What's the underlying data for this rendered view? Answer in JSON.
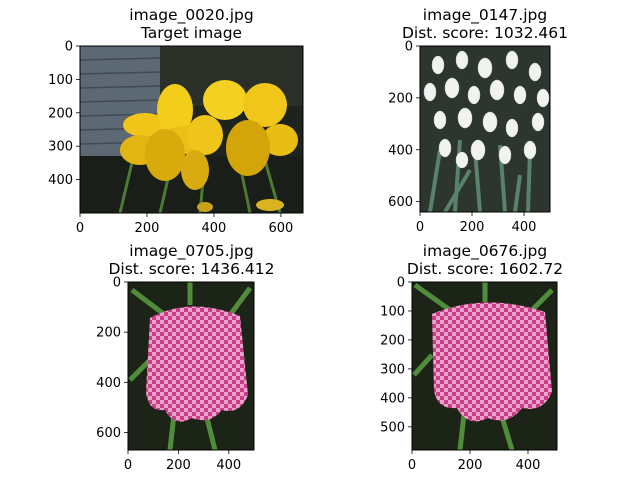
{
  "chart_data": [
    {
      "type": "image",
      "title_lines": [
        "image_0020.jpg",
        "Target image"
      ],
      "image_kind": "yellow-daffodils",
      "image_width": 666,
      "image_height": 500,
      "xlim": [
        0,
        666
      ],
      "ylim": [
        500,
        0
      ],
      "xticks": [
        0,
        200,
        400,
        600
      ],
      "yticks": [
        0,
        100,
        200,
        300,
        400
      ]
    },
    {
      "type": "image",
      "title_lines": [
        "image_0147.jpg",
        "Dist. score: 1032.461"
      ],
      "image_kind": "white-snowdrops",
      "image_width": 500,
      "image_height": 640,
      "xlim": [
        0,
        500
      ],
      "ylim": [
        640,
        0
      ],
      "xticks": [
        0,
        200,
        400
      ],
      "yticks": [
        0,
        200,
        400,
        600
      ]
    },
    {
      "type": "image",
      "title_lines": [
        "image_0705.jpg",
        "Dist. score: 1436.412"
      ],
      "image_kind": "pink-checkered-fritillary",
      "image_width": 500,
      "image_height": 670,
      "xlim": [
        0,
        500
      ],
      "ylim": [
        670,
        0
      ],
      "xticks": [
        0,
        200,
        400
      ],
      "yticks": [
        0,
        200,
        400,
        600
      ]
    },
    {
      "type": "image",
      "title_lines": [
        "image_0676.jpg",
        "Dist. score: 1602.72"
      ],
      "image_kind": "pink-checkered-fritillary",
      "image_width": 500,
      "image_height": 580,
      "xlim": [
        0,
        500
      ],
      "ylim": [
        580,
        0
      ],
      "xticks": [
        0,
        200,
        400
      ],
      "yticks": [
        0,
        100,
        200,
        300,
        400,
        500
      ]
    }
  ],
  "colors": {
    "daffodil_petal": "#f2cc17",
    "daffodil_trumpet": "#d9ad0a",
    "daffodil_bg_wall": "#5a6670",
    "snowdrop_bg": "#2d3a2f",
    "snowdrop_flower": "#f2f4f2",
    "fritillary_bg": "#1b2217",
    "fritillary_pink": "#d2438f",
    "fritillary_light": "#f2c6df",
    "leaf_green": "#4c8a3c"
  }
}
